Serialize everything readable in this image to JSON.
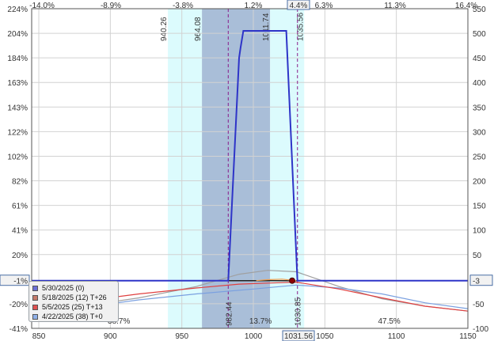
{
  "chart_data": {
    "type": "line",
    "x_ticks": [
      "850",
      "900",
      "950",
      "1000",
      "1050",
      "1100",
      "1150"
    ],
    "x_highlight": "1031.56",
    "top_pct_ticks": [
      "-14.0%",
      "-8.9%",
      "-3.8%",
      "1.2%",
      "4.4%",
      "6.3%",
      "11.3%",
      "16.4%"
    ],
    "top_highlight": "4.4%",
    "left_pct_ticks": [
      "224%",
      "204%",
      "184%",
      "163%",
      "143%",
      "122%",
      "102%",
      "82%",
      "61%",
      "41%",
      "20%",
      "-1%",
      "-20%",
      "-41%"
    ],
    "right_ticks": [
      "550",
      "500",
      "450",
      "400",
      "350",
      "300",
      "250",
      "200",
      "150",
      "100",
      "50",
      "-3",
      "-50",
      "-100"
    ],
    "xlim": [
      845,
      1150
    ],
    "ylim": [
      -100,
      550
    ],
    "zero_level": -3,
    "bands": [
      {
        "from": 940.26,
        "to": 964.08,
        "color": "#dcfbfd"
      },
      {
        "from": 964.08,
        "to": 1011.74,
        "color": "#a9bed8"
      },
      {
        "from": 1011.74,
        "to": 1035.56,
        "color": "#dcfbfd"
      }
    ],
    "band_labels": [
      "940.26",
      "964.08",
      "1011.74",
      "1035.56"
    ],
    "markers": [
      {
        "x": 982.44,
        "label": "982.44"
      },
      {
        "x": 1030.85,
        "label": "1030.85"
      }
    ],
    "bottom_pct_labels": [
      {
        "x": 906,
        "text": "38.7%"
      },
      {
        "x": 1005,
        "text": "13.7%"
      },
      {
        "x": 1095,
        "text": "47.5%"
      }
    ],
    "current_price": 1031.56,
    "series": [
      {
        "name": "5/30/2025 (0)",
        "color": "#2e34c8",
        "x": [
          845,
          982.44,
          990,
          991,
          993,
          1023,
          1030.85,
          1150
        ],
        "y": [
          -3,
          -3,
          450,
          470,
          505,
          505,
          -3,
          -3
        ]
      },
      {
        "name": "5/18/2025 (12) T+26",
        "color": "#f0a050",
        "x": [
          1002,
          1010,
          1020,
          1030
        ],
        "y": [
          -3,
          -1,
          0,
          -3
        ]
      },
      {
        "name": "5/5/2025 (25) T+13",
        "color": "#e04040",
        "x": [
          845,
          880,
          920,
          960,
          990,
          1010,
          1030,
          1060,
          1090,
          1120,
          1150
        ],
        "y": [
          -60,
          -45,
          -30,
          -18,
          -10,
          -8,
          -6,
          -20,
          -38,
          -55,
          -65
        ]
      },
      {
        "name": "4/22/2025 (38) T+0",
        "color": "#7aa0e0",
        "x": [
          845,
          880,
          920,
          960,
          1000,
          1030,
          1060,
          1090,
          1120,
          1150
        ],
        "y": [
          -75,
          -58,
          -42,
          -30,
          -20,
          -12,
          -18,
          -30,
          -48,
          -60
        ]
      },
      {
        "name": "",
        "color": "#a0a0a0",
        "x": [
          845,
          880,
          920,
          960,
          990,
          1010,
          1030,
          1060,
          1090,
          1120,
          1150
        ],
        "y": [
          -70,
          -55,
          -38,
          -15,
          10,
          18,
          15,
          -15,
          -40,
          -55,
          -65
        ]
      }
    ],
    "legend": [
      {
        "label": "5/30/2025 (0)",
        "color": "#6b6fd6"
      },
      {
        "label": "5/18/2025 (12) T+26",
        "color": "#c47a6a"
      },
      {
        "label": "5/5/2025 (25) T+13",
        "color": "#e05050"
      },
      {
        "label": "4/22/2025 (38) T+0",
        "color": "#8fb0e8"
      }
    ]
  }
}
